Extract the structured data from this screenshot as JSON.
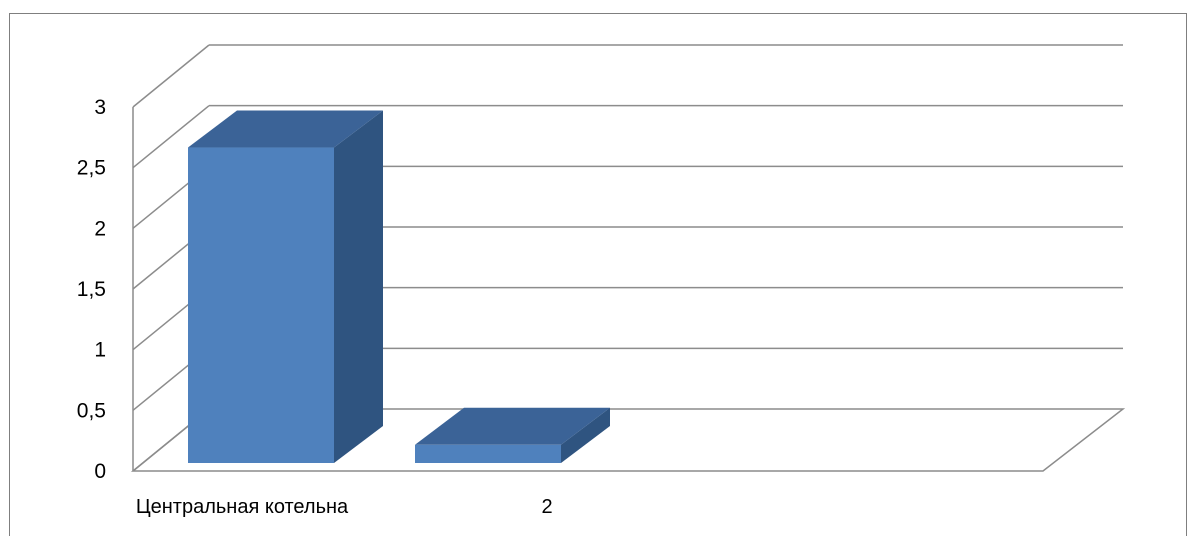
{
  "chart_data": {
    "type": "bar",
    "style": "3d-column",
    "categories": [
      "Центральная котельна",
      "2"
    ],
    "values": [
      2.6,
      0.15
    ],
    "yticks": [
      "0",
      "0,5",
      "1",
      "1,5",
      "2",
      "2,5",
      "3"
    ],
    "ylim": [
      0,
      3
    ],
    "grid": true,
    "legend": "none",
    "colors": {
      "front": "#4f81bd",
      "side": "#2f5480",
      "top": "#3b6397",
      "grid": "#8c8c8c"
    }
  }
}
